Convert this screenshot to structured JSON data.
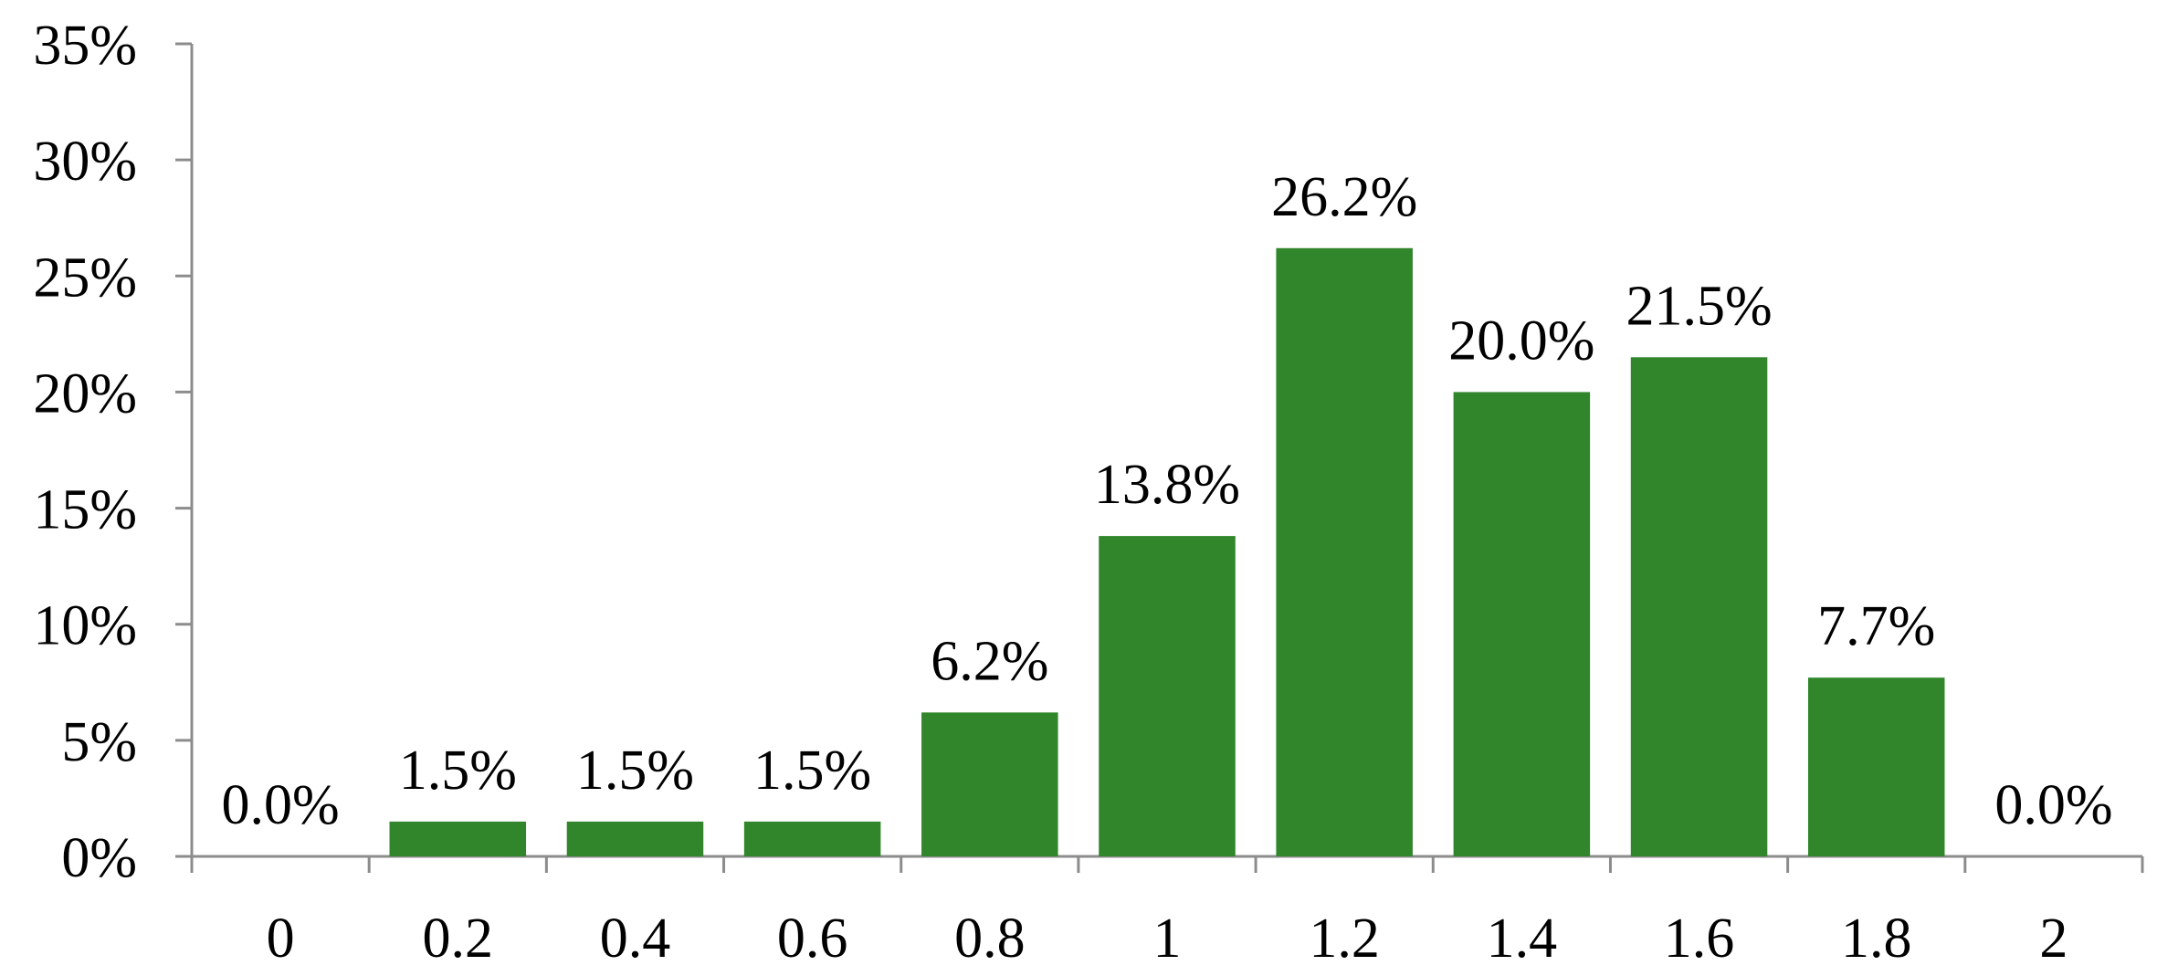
{
  "chart_data": {
    "type": "bar",
    "title": "",
    "xlabel": "",
    "ylabel": "",
    "categories": [
      "0",
      "0.2",
      "0.4",
      "0.6",
      "0.8",
      "1",
      "1.2",
      "1.4",
      "1.6",
      "1.8",
      "2"
    ],
    "values": [
      0.0,
      1.5,
      1.5,
      1.5,
      6.2,
      13.8,
      26.2,
      20.0,
      21.5,
      7.7,
      0.0
    ],
    "data_labels": [
      "0.0%",
      "1.5%",
      "1.5%",
      "1.5%",
      "6.2%",
      "13.8%",
      "26.2%",
      "20.0%",
      "21.5%",
      "7.7%",
      "0.0%"
    ],
    "ylim": [
      0,
      35
    ],
    "y_ticks": [
      0,
      5,
      10,
      15,
      20,
      25,
      30,
      35
    ],
    "y_tick_labels": [
      "0%",
      "5%",
      "10%",
      "15%",
      "20%",
      "25%",
      "30%",
      "35%"
    ],
    "grid": false,
    "legend": "none",
    "bar_color": "#31862b",
    "axis_color": "#8c8c8c",
    "text_color": "#000000"
  }
}
